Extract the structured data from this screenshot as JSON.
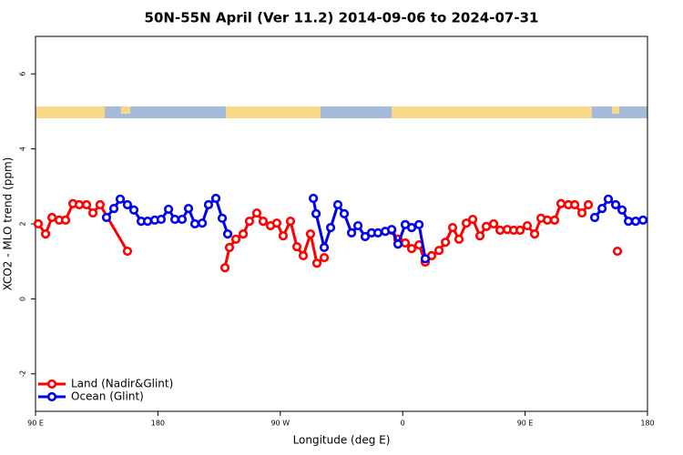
{
  "chart_data": {
    "type": "line",
    "title": "50N-55N April (Ver 11.2)   2014-09-06 to 2024-07-31",
    "xlabel": "Longitude (deg E)",
    "ylabel": "XCO2 - MLO trend (ppm)",
    "xlim": [
      90,
      540
    ],
    "ylim": [
      -3,
      7
    ],
    "xticks": [
      {
        "value": 90,
        "label": "90 E"
      },
      180,
      {
        "value": 270,
        "label": "90 W"
      },
      {
        "value": 360,
        "label": "0"
      },
      {
        "value": 450,
        "label": "90 E"
      },
      {
        "value": 540,
        "label": "180"
      }
    ],
    "yticks": [
      -2,
      0,
      2,
      4,
      6
    ],
    "legend": "lower left",
    "series": [
      {
        "name": "Land (Nadir&Glint)",
        "color": "#ff0000",
        "x": [
          92.0,
          97.4,
          102.1,
          107.4,
          112.1,
          117.5,
          122.1,
          127.5,
          132.2,
          137.5,
          157.6,
          null,
          229.3,
          232.6,
          237.3,
          242.7,
          247.3,
          252.7,
          257.4,
          262.8,
          267.4,
          272.1,
          277.5,
          282.2,
          286.9,
          292.2,
          296.9,
          302.3,
          null,
          351.9,
          356.5,
          361.9,
          366.6,
          372.0,
          376.6,
          381.3,
          386.7,
          391.4,
          396.7,
          401.4,
          406.8,
          411.5,
          416.8,
          421.5,
          426.9,
          431.6,
          436.9,
          441.6,
          446.3,
          451.6,
          457.0,
          461.7,
          466.4,
          471.7,
          476.4,
          481.8,
          486.5,
          491.8,
          496.5,
          null,
          517.9
        ],
        "values": [
          2.0,
          1.73,
          2.17,
          2.1,
          2.1,
          2.54,
          2.51,
          2.51,
          2.29,
          2.51,
          1.27,
          null,
          0.83,
          1.37,
          1.59,
          1.73,
          2.07,
          2.29,
          2.07,
          1.95,
          2.02,
          1.68,
          2.07,
          1.39,
          1.15,
          1.73,
          0.95,
          1.1,
          null,
          1.83,
          1.59,
          1.49,
          1.34,
          1.44,
          0.98,
          1.15,
          1.29,
          1.51,
          1.9,
          1.59,
          2.02,
          2.12,
          1.68,
          1.93,
          2.0,
          1.83,
          1.85,
          1.83,
          1.83,
          1.95,
          1.73,
          2.15,
          2.1,
          2.1,
          2.54,
          2.51,
          2.51,
          2.29,
          2.51,
          null,
          1.27
        ]
      },
      {
        "name": "Ocean (Glint)",
        "color": "#0000ee",
        "x": [
          142.2,
          147.6,
          152.3,
          157.6,
          162.3,
          167.7,
          172.4,
          177.7,
          182.4,
          187.8,
          192.5,
          197.8,
          202.5,
          207.2,
          212.6,
          217.2,
          222.6,
          227.3,
          231.3,
          null,
          294.3,
          296.3,
          302.3,
          307.0,
          312.3,
          317.0,
          322.4,
          327.1,
          332.4,
          337.1,
          341.8,
          347.2,
          351.9,
          356.5,
          361.9,
          366.6,
          372.0,
          376.6,
          null,
          501.2,
          506.6,
          511.2,
          516.6,
          521.3,
          526.0,
          531.3,
          536.7
        ],
        "values": [
          2.17,
          2.41,
          2.66,
          2.51,
          2.37,
          2.07,
          2.07,
          2.1,
          2.12,
          2.39,
          2.12,
          2.12,
          2.41,
          2.0,
          2.02,
          2.51,
          2.68,
          2.15,
          1.73,
          null,
          2.68,
          2.27,
          1.37,
          1.9,
          2.51,
          2.27,
          1.76,
          1.95,
          1.66,
          1.76,
          1.76,
          1.8,
          1.85,
          1.46,
          1.98,
          1.9,
          1.98,
          1.07,
          null,
          2.17,
          2.41,
          2.66,
          2.51,
          2.37,
          2.07,
          2.07,
          2.1
        ]
      }
    ]
  }
}
